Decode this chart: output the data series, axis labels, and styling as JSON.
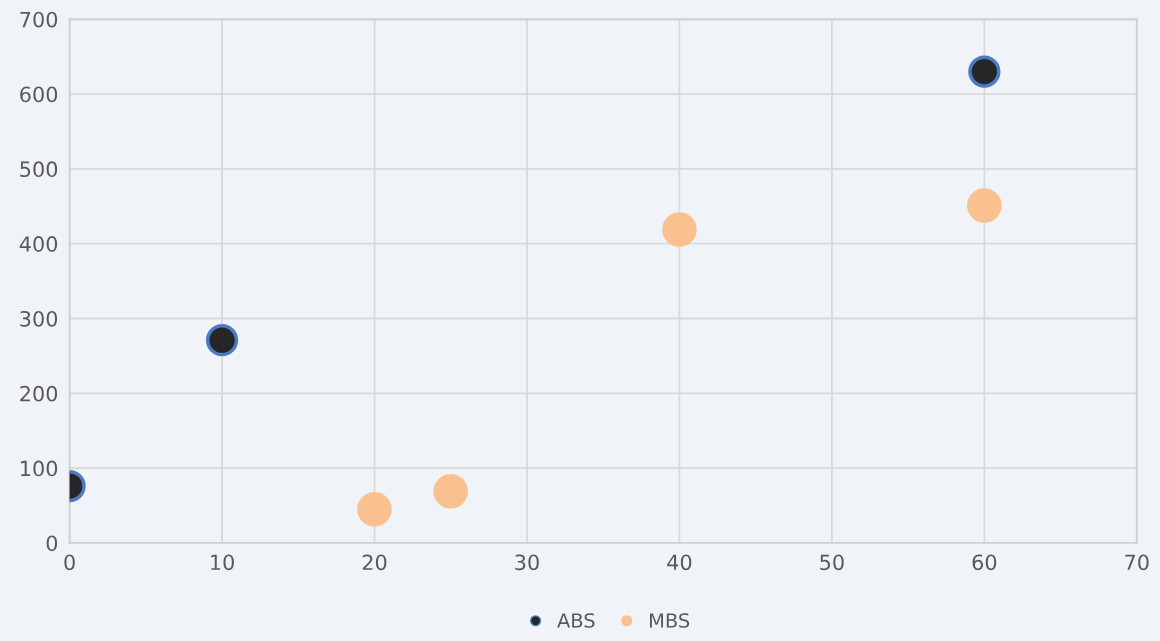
{
  "chart_data": {
    "type": "scatter",
    "xlim": [
      0,
      70
    ],
    "ylim": [
      0,
      700
    ],
    "xticks": [
      0,
      10,
      20,
      30,
      40,
      50,
      60,
      70
    ],
    "yticks": [
      0,
      100,
      200,
      300,
      400,
      500,
      600,
      700
    ],
    "grid": true,
    "legend": "bottom",
    "marker": "circle",
    "series": [
      {
        "name": "ABS",
        "color": "#262626",
        "x": [
          0,
          10,
          60
        ],
        "values": [
          76,
          271,
          630
        ]
      },
      {
        "name": "MBS",
        "color": "#f9c18f",
        "x": [
          20,
          25,
          40,
          60
        ],
        "values": [
          45,
          69,
          419,
          451
        ]
      }
    ]
  }
}
